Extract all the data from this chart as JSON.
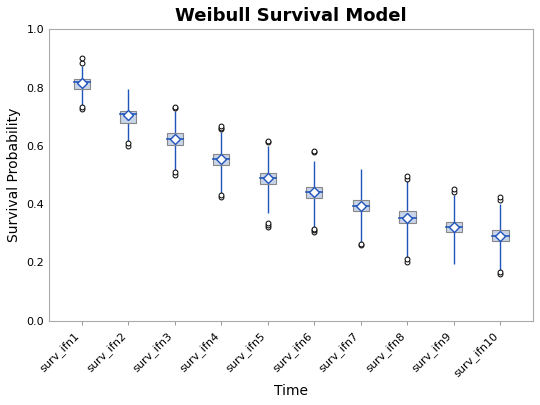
{
  "title": "Weibull Survival Model",
  "xlabel": "Time",
  "ylabel": "Survival Probability",
  "ylim": [
    0.0,
    1.0
  ],
  "categories": [
    "surv_ifn1",
    "surv_ifn2",
    "surv_ifn3",
    "surv_ifn4",
    "surv_ifn5",
    "surv_ifn6",
    "surv_ifn7",
    "surv_ifn8",
    "surv_ifn9",
    "surv_ifn10"
  ],
  "box_data": [
    {
      "q1": 0.795,
      "median": 0.818,
      "q3": 0.83,
      "mean": 0.815,
      "whisker_low": 0.74,
      "whisker_high": 0.875,
      "outliers_low": [
        0.725,
        0.735
      ],
      "outliers_high": [
        0.885,
        0.9
      ]
    },
    {
      "q1": 0.68,
      "median": 0.708,
      "q3": 0.72,
      "mean": 0.705,
      "whisker_low": 0.61,
      "whisker_high": 0.795,
      "outliers_low": [
        0.6,
        0.61
      ],
      "outliers_high": []
    },
    {
      "q1": 0.603,
      "median": 0.623,
      "q3": 0.643,
      "mean": 0.623,
      "whisker_low": 0.51,
      "whisker_high": 0.72,
      "outliers_low": [
        0.5,
        0.51
      ],
      "outliers_high": [
        0.73,
        0.735
      ]
    },
    {
      "q1": 0.535,
      "median": 0.555,
      "q3": 0.572,
      "mean": 0.555,
      "whisker_low": 0.43,
      "whisker_high": 0.648,
      "outliers_low": [
        0.425,
        0.43
      ],
      "outliers_high": [
        0.657,
        0.662,
        0.667
      ]
    },
    {
      "q1": 0.47,
      "median": 0.49,
      "q3": 0.508,
      "mean": 0.49,
      "whisker_low": 0.368,
      "whisker_high": 0.6,
      "outliers_low": [
        0.322,
        0.328,
        0.334
      ],
      "outliers_high": [
        0.612,
        0.618
      ]
    },
    {
      "q1": 0.422,
      "median": 0.442,
      "q3": 0.46,
      "mean": 0.442,
      "whisker_low": 0.312,
      "whisker_high": 0.548,
      "outliers_low": [
        0.305,
        0.31,
        0.315
      ],
      "outliers_high": [
        0.578,
        0.584
      ]
    },
    {
      "q1": 0.375,
      "median": 0.393,
      "q3": 0.413,
      "mean": 0.393,
      "whisker_low": 0.268,
      "whisker_high": 0.522,
      "outliers_low": [
        0.26,
        0.265
      ],
      "outliers_high": []
    },
    {
      "q1": 0.335,
      "median": 0.352,
      "q3": 0.375,
      "mean": 0.352,
      "whisker_low": 0.218,
      "whisker_high": 0.478,
      "outliers_low": [
        0.202,
        0.212
      ],
      "outliers_high": [
        0.488,
        0.496
      ]
    },
    {
      "q1": 0.303,
      "median": 0.32,
      "q3": 0.34,
      "mean": 0.32,
      "whisker_low": 0.195,
      "whisker_high": 0.432,
      "outliers_low": [],
      "outliers_high": [
        0.442,
        0.452
      ]
    },
    {
      "q1": 0.273,
      "median": 0.29,
      "q3": 0.313,
      "mean": 0.29,
      "whisker_low": 0.168,
      "whisker_high": 0.4,
      "outliers_low": [
        0.162,
        0.168
      ],
      "outliers_high": [
        0.415,
        0.425
      ]
    }
  ],
  "box_facecolor": "#c8d4e8",
  "box_edgecolor": "#888888",
  "median_color": "#2255bb",
  "whisker_color": "#2255bb",
  "mean_marker_color": "#2255bb",
  "outlier_facecolor": "white",
  "outlier_edgecolor": "black",
  "plot_bg_color": "#ffffff",
  "fig_bg_color": "#ffffff",
  "title_fontsize": 13,
  "axis_label_fontsize": 10,
  "tick_label_fontsize": 8,
  "box_width": 0.35,
  "yticks": [
    0.0,
    0.2,
    0.4,
    0.6,
    0.8,
    1.0
  ]
}
